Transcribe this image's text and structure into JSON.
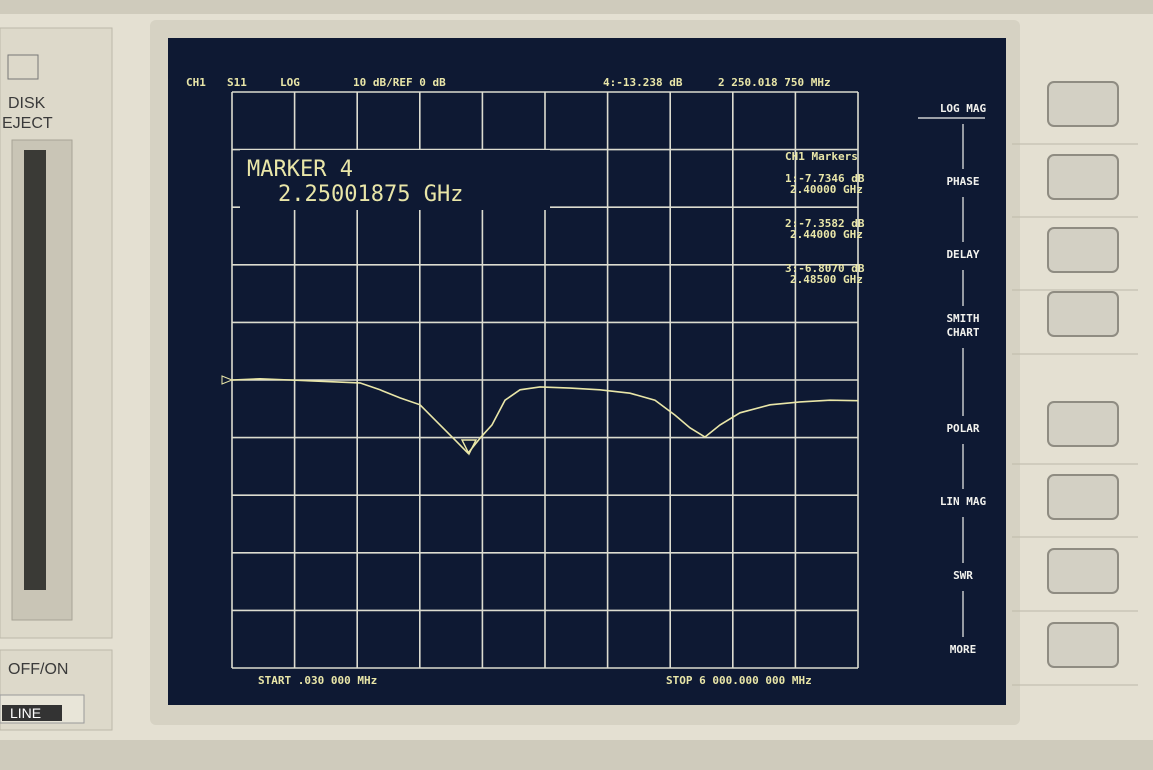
{
  "header": {
    "channel": "CH1",
    "parameter": "S11",
    "format": "LOG",
    "scale": "10 dB/REF 0 dB",
    "marker_value": "4:-13.238 dB",
    "marker_frequency": "2 250.018 750 MHz"
  },
  "marker_readout": {
    "title": "MARKER 4",
    "frequency": "2.25001875 GHz"
  },
  "marker_list": {
    "title": "CH1 Markers",
    "items": [
      [
        "1:-7.7346 dB",
        "2.40000 GHz"
      ],
      [
        "2:-7.3582 dB",
        "2.44000 GHz"
      ],
      [
        "3:-6.8070 dB",
        "2.48500 GHz"
      ]
    ]
  },
  "footer": {
    "start": "START  .030 000 MHz",
    "stop": "STOP 6 000.000 000 MHz"
  },
  "softkeys": [
    "LOG MAG",
    "PHASE",
    "DELAY",
    "SMITH",
    "CHART",
    "POLAR",
    "LIN MAG",
    "SWR",
    "MORE"
  ],
  "bezel": {
    "disk": "DISK",
    "eject": "EJECT",
    "power": "OFF/ON",
    "line": "LINE"
  },
  "trace": {
    "xlim": [
      0.03,
      6000
    ],
    "ylim": [
      -50,
      50
    ],
    "x": [
      0.03,
      268,
      556,
      939,
      1227,
      1419,
      1610,
      1802,
      1994,
      2137,
      2262,
      2377,
      2492,
      2617,
      2760,
      2952,
      3240,
      3527,
      3815,
      4054,
      4246,
      4390,
      4534,
      4678,
      4869,
      5157,
      5444,
      5732,
      6000
    ],
    "values": [
      0,
      0.2,
      0,
      -0.3,
      -0.5,
      -1.7,
      -3.1,
      -4.3,
      -7.8,
      -10.4,
      -12.7,
      -10.1,
      -7.8,
      -3.5,
      -1.7,
      -1.2,
      -1.4,
      -1.7,
      -2.3,
      -3.5,
      -6.1,
      -8.3,
      -9.9,
      -7.8,
      -5.7,
      -4.3,
      -3.8,
      -3.5,
      -3.6
    ],
    "color": "#e9e6a8"
  }
}
